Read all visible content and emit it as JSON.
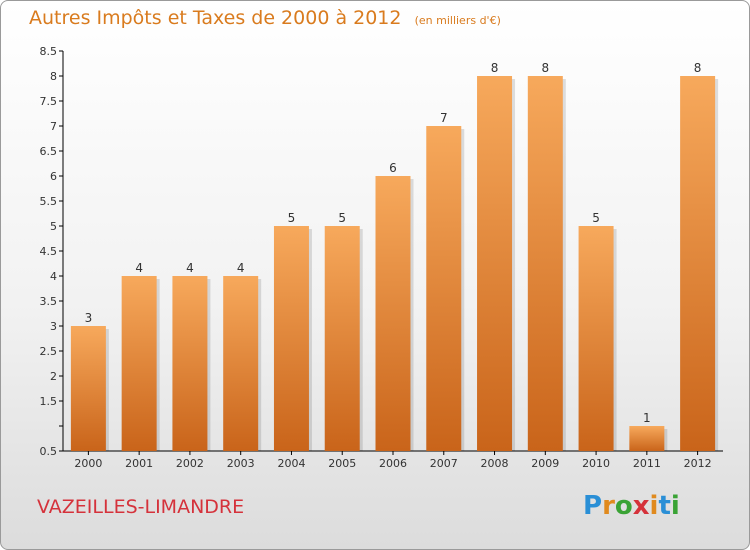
{
  "title": "Autres Impôts et Taxes de 2000 à 2012",
  "unit": "(en milliers d'€)",
  "footer": {
    "commune": "VAZEILLES-LIMANDRE"
  },
  "logo": {
    "letters": [
      "P",
      "r",
      "o",
      "x",
      "i",
      "t",
      "i"
    ],
    "colors": [
      "#2a8fd6",
      "#e08a1e",
      "#3aa335",
      "#d5323b",
      "#e08a1e",
      "#2a8fd6",
      "#3aa335"
    ]
  },
  "colors": {
    "bar_light": "#f7a95c",
    "bar_dark": "#c9641a",
    "title": "#d97b1e",
    "commune": "#d5323b"
  },
  "chart_data": {
    "type": "bar",
    "categories": [
      "2000",
      "2001",
      "2002",
      "2003",
      "2004",
      "2005",
      "2006",
      "2007",
      "2008",
      "2009",
      "2010",
      "2011",
      "2012"
    ],
    "values": [
      3,
      4,
      4,
      4,
      5,
      5,
      6,
      7,
      8,
      8,
      5,
      1,
      8
    ],
    "data_labels": [
      "3",
      "4",
      "4",
      "4",
      "5",
      "5",
      "6",
      "7",
      "8",
      "8",
      "5",
      "1",
      "8"
    ],
    "ylim": [
      0.5,
      8.5
    ],
    "yticks": [
      0.5,
      1,
      1.5,
      2,
      2.5,
      3,
      3.5,
      4,
      4.5,
      5,
      5.5,
      6,
      6.5,
      7,
      7.5,
      8,
      8.5
    ],
    "ytick_labels": [
      "0.5",
      "",
      "1.5",
      "2",
      "2.5",
      "3",
      "3.5",
      "4",
      "4.5",
      "5",
      "5.5",
      "6",
      "6.5",
      "7",
      "7.5",
      "8",
      "8.5"
    ],
    "grid": false,
    "xlabel": "",
    "ylabel": ""
  }
}
